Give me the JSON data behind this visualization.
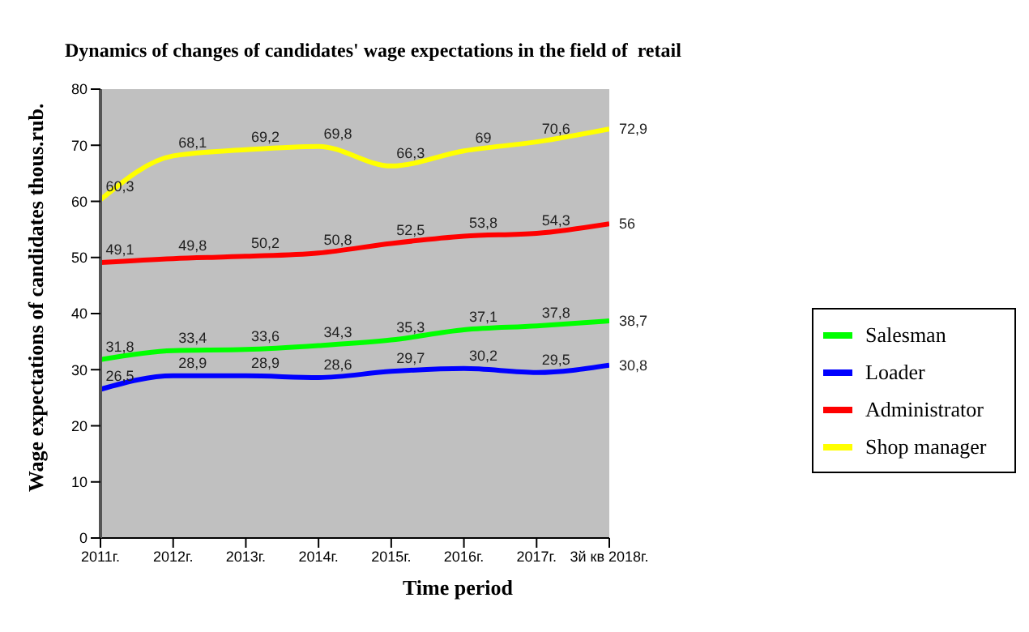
{
  "chart_data": {
    "type": "line",
    "title": "Dynamics of changes of candidates' wage expectations in the field of  retail",
    "xlabel": "Time period",
    "ylabel": "Wage expectations of candidates thous.rub.",
    "categories": [
      "2011г.",
      "2012г.",
      "2013г.",
      "2014г.",
      "2015г.",
      "2016г.",
      "2017г.",
      "3й кв 2018г."
    ],
    "series": [
      {
        "name": "Salesman",
        "color": "#00ff00",
        "values": [
          31.8,
          33.4,
          33.6,
          34.3,
          35.3,
          37.1,
          37.8,
          38.7
        ],
        "value_labels": [
          "31,8",
          "33,4",
          "33,6",
          "34,3",
          "35,3",
          "37,1",
          "37,8",
          "38,7"
        ]
      },
      {
        "name": "Loader",
        "color": "#0000ff",
        "values": [
          26.5,
          28.9,
          28.9,
          28.6,
          29.7,
          30.2,
          29.5,
          30.8
        ],
        "value_labels": [
          "26,5",
          "28,9",
          "28,9",
          "28,6",
          "29,7",
          "30,2",
          "29,5",
          "30,8"
        ]
      },
      {
        "name": "Administrator",
        "color": "#ff0000",
        "values": [
          49.1,
          49.8,
          50.2,
          50.8,
          52.5,
          53.8,
          54.3,
          56
        ],
        "value_labels": [
          "49,1",
          "49,8",
          "50,2",
          "50,8",
          "52,5",
          "53,8",
          "54,3",
          "56"
        ]
      },
      {
        "name": "Shop manager",
        "color": "#ffff00",
        "values": [
          60.3,
          68.1,
          69.2,
          69.8,
          66.3,
          69,
          70.6,
          72.9
        ],
        "value_labels": [
          "60,3",
          "68,1",
          "69,2",
          "69,8",
          "66,3",
          "69",
          "70,6",
          "72,9"
        ]
      }
    ],
    "ylim": [
      0,
      80
    ],
    "yticks": [
      0,
      10,
      20,
      30,
      40,
      50,
      60,
      70,
      80
    ],
    "legend": "right",
    "marker": "none",
    "line_style": "solid"
  }
}
